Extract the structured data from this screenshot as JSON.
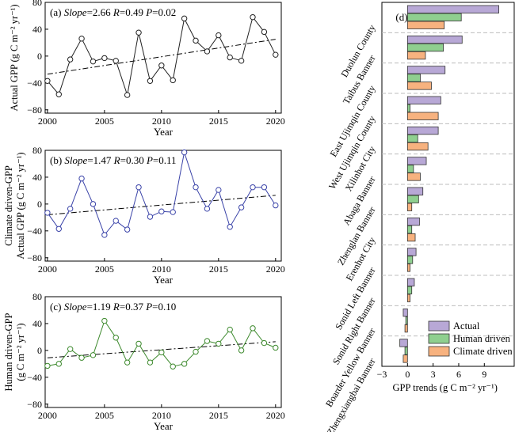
{
  "chart_data": [
    {
      "type": "line",
      "panel_label": "(a)",
      "stat_text": {
        "slope_name": "Slope",
        "slope_val": "=2.66 ",
        "r_name": "R",
        "r_val": "=0.49 ",
        "p_name": "P",
        "p_val": "=0.02"
      },
      "xlabel": "Year",
      "ylabel": [
        "Actual GPP (g C m⁻² yr⁻¹)"
      ],
      "ylim": [
        -85,
        80
      ],
      "yticks": [
        -80,
        -40,
        0,
        40,
        80
      ],
      "xlim": [
        1999.8,
        2020.5
      ],
      "xticks": [
        2000,
        2005,
        2010,
        2015,
        2020
      ],
      "color": "#222222",
      "x": [
        2000,
        2001,
        2002,
        2003,
        2004,
        2005,
        2006,
        2007,
        2008,
        2009,
        2010,
        2011,
        2012,
        2013,
        2014,
        2015,
        2016,
        2017,
        2018,
        2019,
        2020
      ],
      "values": [
        -37,
        -57,
        -5,
        26,
        -8,
        -3,
        -7,
        -58,
        35,
        -37,
        -14,
        -36,
        56,
        23,
        7,
        31,
        -2,
        -7,
        58,
        36,
        2
      ],
      "trend": [
        -27,
        25
      ]
    },
    {
      "type": "line",
      "panel_label": "(b)",
      "stat_text": {
        "slope_name": "Slope",
        "slope_val": "=1.47 ",
        "r_name": "R",
        "r_val": "=0.30 ",
        "p_name": "P",
        "p_val": "=0.11"
      },
      "xlabel": "Year",
      "ylabel": [
        "Climate driven-GPP",
        "Actual GPP (g C m⁻² yr⁻¹)"
      ],
      "ylim": [
        -85,
        80
      ],
      "yticks": [
        -80,
        -40,
        0,
        40,
        80
      ],
      "xlim": [
        1999.8,
        2020.5
      ],
      "xticks": [
        2000,
        2005,
        2010,
        2015,
        2020
      ],
      "color": "#3a43a8",
      "x": [
        2000,
        2001,
        2002,
        2003,
        2004,
        2005,
        2006,
        2007,
        2008,
        2009,
        2010,
        2011,
        2012,
        2013,
        2014,
        2015,
        2016,
        2017,
        2018,
        2019,
        2020
      ],
      "values": [
        -13,
        -37,
        -7,
        38,
        0,
        -46,
        -25,
        -38,
        25,
        -19,
        -11,
        -12,
        77,
        25,
        -7,
        21,
        -34,
        -5,
        25,
        25,
        -2
      ],
      "trend": [
        -16,
        13
      ]
    },
    {
      "type": "line",
      "panel_label": "(c)",
      "stat_text": {
        "slope_name": "Slope",
        "slope_val": "=1.19 ",
        "r_name": "R",
        "r_val": "=0.37 ",
        "p_name": "P",
        "p_val": "=0.10"
      },
      "xlabel": "Year",
      "ylabel": [
        "Human driven-GPP",
        "(g C m⁻² yr⁻¹)"
      ],
      "ylim": [
        -85,
        80
      ],
      "yticks": [
        -80,
        -40,
        0,
        40,
        80
      ],
      "xlim": [
        1999.8,
        2020.5
      ],
      "xticks": [
        2000,
        2005,
        2010,
        2015,
        2020
      ],
      "color": "#3e8a2e",
      "x": [
        2000,
        2001,
        2002,
        2003,
        2004,
        2005,
        2006,
        2007,
        2008,
        2009,
        2010,
        2011,
        2012,
        2013,
        2014,
        2015,
        2016,
        2017,
        2018,
        2019,
        2020
      ],
      "values": [
        -23,
        -20,
        2,
        -11,
        -7,
        44,
        19,
        -18,
        10,
        -18,
        -3,
        -24,
        -20,
        -2,
        14,
        10,
        31,
        0,
        33,
        11,
        4
      ],
      "trend": [
        -11,
        13
      ]
    },
    {
      "type": "bar",
      "orientation": "horizontal",
      "panel_label": "(d)",
      "xlabel": "GPP trends  (g C m⁻² yr⁻¹)",
      "xlim": [
        -3,
        12.5
      ],
      "xticks": [
        -3,
        0,
        3,
        6,
        9
      ],
      "legend_position": "bottom-right",
      "categories": [
        "Duolun County",
        "Taibus Banner",
        "East Ujimqin County",
        "West Ujimqin County",
        "Xilinhot City",
        "Abaga Banner",
        "Zhenglan Banner",
        "Erenhot City",
        "Sonid Left Banner",
        "Sonid Right Banner",
        "Boarder Yellow Banner",
        "Zhengxiangbai Banner"
      ],
      "series": [
        {
          "name": "Actual",
          "color": "#b8a8d6",
          "values": [
            10.7,
            6.4,
            4.4,
            3.9,
            3.6,
            2.2,
            1.8,
            1.4,
            1.0,
            0.8,
            -0.5,
            -0.9
          ]
        },
        {
          "name": "Human driven",
          "color": "#8fcf8f",
          "values": [
            6.3,
            4.2,
            1.5,
            0.3,
            1.2,
            0.7,
            1.3,
            0.5,
            0.6,
            0.5,
            -0.2,
            -0.3
          ]
        },
        {
          "name": "Climate driven",
          "color": "#f7b27f",
          "values": [
            4.3,
            2.1,
            2.8,
            3.6,
            2.4,
            1.5,
            0.5,
            0.9,
            0.3,
            0.3,
            -0.3,
            -0.5
          ]
        }
      ]
    }
  ]
}
